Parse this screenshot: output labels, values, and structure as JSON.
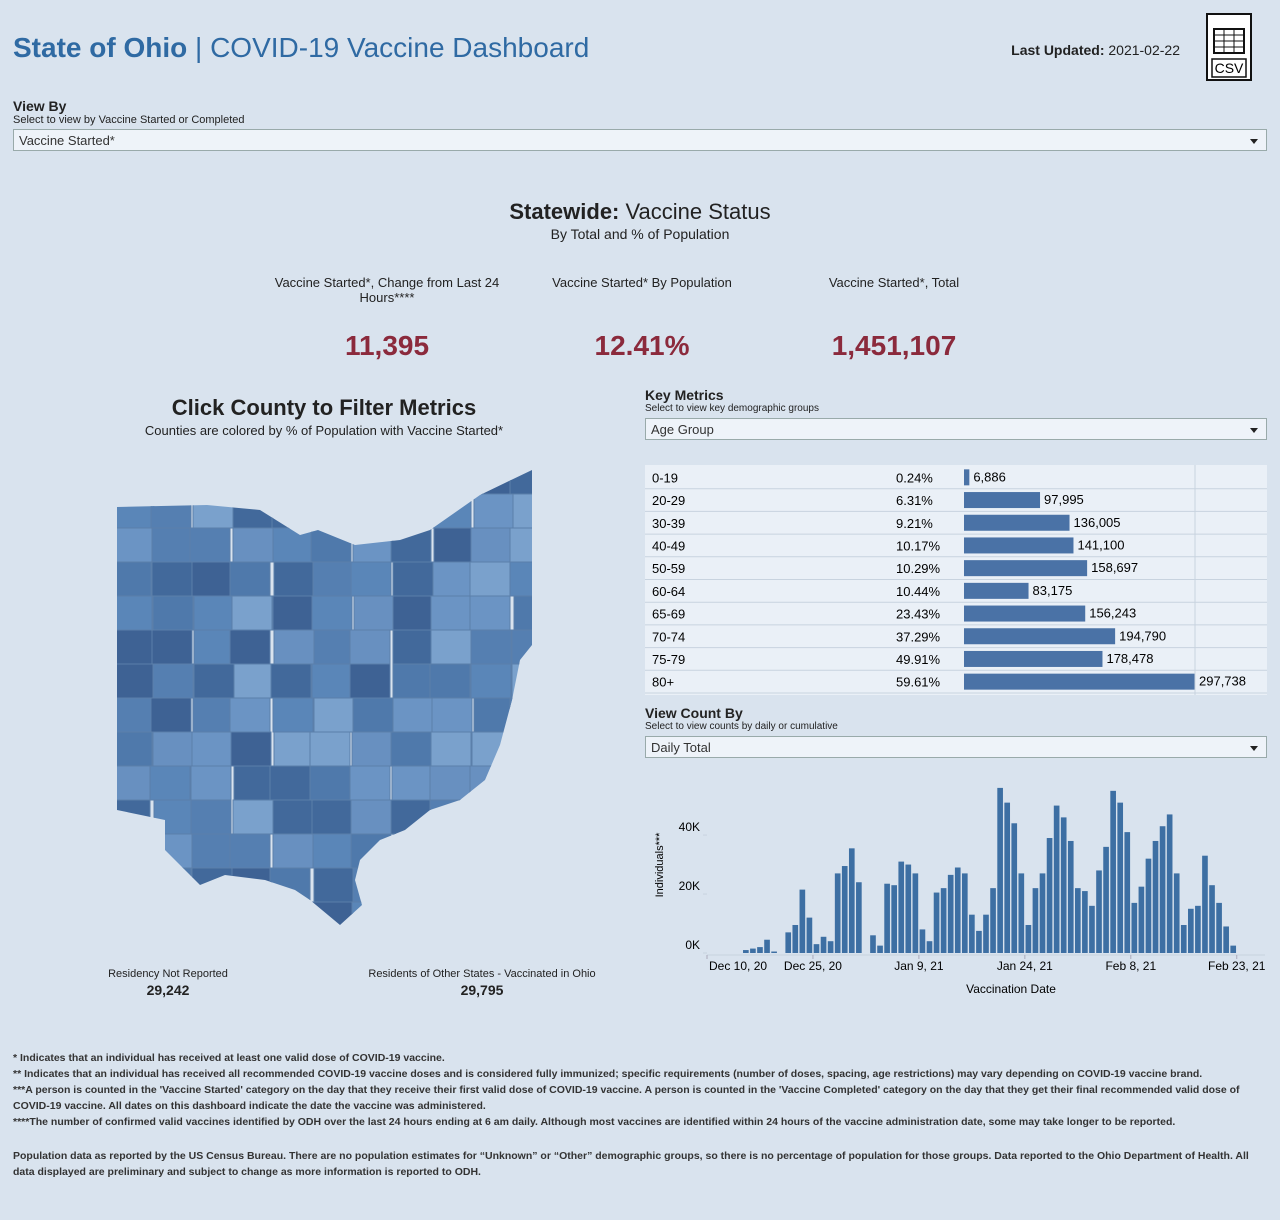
{
  "header": {
    "title_bold": "State of Ohio",
    "title_rest": "| COVID-19 Vaccine Dashboard",
    "updated_label": "Last Updated:",
    "updated_value": "2021-02-22",
    "csv_icon": "CSV"
  },
  "view_by": {
    "label": "View By",
    "hint": "Select to view by Vaccine Started or Completed",
    "selected": "Vaccine Started*"
  },
  "statewide": {
    "title_bold": "Statewide:",
    "title_rest": "Vaccine Status",
    "subtitle": "By Total and % of Population",
    "kpis": [
      {
        "label": "Vaccine Started*, Change from Last 24 Hours****",
        "value": "11,395"
      },
      {
        "label": "Vaccine Started* By Population",
        "value": "12.41%"
      },
      {
        "label": "Vaccine Started*, Total",
        "value": "1,451,107"
      }
    ]
  },
  "map": {
    "title": "Click County to Filter Metrics",
    "subtitle": "Counties are colored by % of Population with Vaccine Started*",
    "stats": [
      {
        "label": "Residency Not Reported",
        "value": "29,242"
      },
      {
        "label": "Residents of Other States - Vaccinated in Ohio",
        "value": "29,795"
      }
    ]
  },
  "key_metrics": {
    "label": "Key Metrics",
    "hint": "Select to view key demographic groups",
    "selected": "Age Group",
    "table": {
      "type": "bar",
      "color": "#4a72a6",
      "categories": [
        "0-19",
        "20-29",
        "30-39",
        "40-49",
        "50-59",
        "60-64",
        "65-69",
        "70-74",
        "75-79",
        "80+"
      ],
      "percent": [
        "0.24%",
        "6.31%",
        "9.21%",
        "10.17%",
        "10.29%",
        "10.44%",
        "23.43%",
        "37.29%",
        "49.91%",
        "59.61%"
      ],
      "values": [
        6886,
        97995,
        136005,
        141100,
        158697,
        83175,
        156243,
        194790,
        178478,
        297738
      ],
      "value_labels": [
        "6,886",
        "97,995",
        "136,005",
        "141,100",
        "158,697",
        "83,175",
        "156,243",
        "194,790",
        "178,478",
        "297,738"
      ]
    }
  },
  "view_count": {
    "label": "View Count By",
    "hint": "Select to view counts by daily or cumulative",
    "selected": "Daily Total"
  },
  "chart_data": {
    "type": "bar",
    "color": "#3d6fa3",
    "xlabel": "Vaccination Date",
    "ylabel": "Individuals***",
    "x": [
      "2020-12-15",
      "2020-12-16",
      "2020-12-17",
      "2020-12-18",
      "2020-12-19",
      "2020-12-20",
      "2020-12-21",
      "2020-12-22",
      "2020-12-23",
      "2020-12-24",
      "2020-12-25",
      "2020-12-26",
      "2020-12-27",
      "2020-12-28",
      "2020-12-29",
      "2020-12-30",
      "2020-12-31",
      "2021-01-01",
      "2021-01-02",
      "2021-01-03",
      "2021-01-04",
      "2021-01-05",
      "2021-01-06",
      "2021-01-07",
      "2021-01-08",
      "2021-01-09",
      "2021-01-10",
      "2021-01-11",
      "2021-01-12",
      "2021-01-13",
      "2021-01-14",
      "2021-01-15",
      "2021-01-16",
      "2021-01-17",
      "2021-01-18",
      "2021-01-19",
      "2021-01-20",
      "2021-01-21",
      "2021-01-22",
      "2021-01-23",
      "2021-01-24",
      "2021-01-25",
      "2021-01-26",
      "2021-01-27",
      "2021-01-28",
      "2021-01-29",
      "2021-01-30",
      "2021-01-31",
      "2021-02-01",
      "2021-02-02",
      "2021-02-03",
      "2021-02-04",
      "2021-02-05",
      "2021-02-06",
      "2021-02-07",
      "2021-02-08",
      "2021-02-09",
      "2021-02-10",
      "2021-02-11",
      "2021-02-12",
      "2021-02-13",
      "2021-02-14",
      "2021-02-15",
      "2021-02-16",
      "2021-02-17",
      "2021-02-18",
      "2021-02-19",
      "2021-02-20",
      "2021-02-21",
      "2021-02-22"
    ],
    "values": [
      1000,
      1500,
      2000,
      4500,
      500,
      0,
      7000,
      9500,
      21500,
      12000,
      3000,
      5500,
      4000,
      27000,
      29500,
      35500,
      24000,
      0,
      6000,
      2500,
      23500,
      23000,
      31000,
      30000,
      27000,
      8000,
      4000,
      20500,
      22000,
      26500,
      29000,
      27000,
      13000,
      7500,
      13000,
      22000,
      56000,
      51000,
      44000,
      27000,
      9500,
      22000,
      27000,
      39000,
      50000,
      46000,
      38000,
      22000,
      21000,
      16000,
      28000,
      36000,
      55000,
      51000,
      41000,
      17000,
      22500,
      32000,
      38000,
      43000,
      47000,
      27000,
      9500,
      15000,
      16000,
      33000,
      23000,
      17000,
      9000,
      2500
    ],
    "xlim": [
      "2020-12-10",
      "2021-02-27"
    ],
    "xticks": [
      {
        "value": "2020-12-10",
        "label": "Dec 10, 20"
      },
      {
        "value": "2020-12-25",
        "label": "Dec 25, 20"
      },
      {
        "value": "2021-01-09",
        "label": "Jan 9, 21"
      },
      {
        "value": "2021-01-24",
        "label": "Jan 24, 21"
      },
      {
        "value": "2021-02-08",
        "label": "Feb 8, 21"
      },
      {
        "value": "2021-02-23",
        "label": "Feb 23, 21"
      }
    ],
    "ylim": [
      0,
      58000
    ],
    "yticks": [
      {
        "value": 0,
        "label": "0K"
      },
      {
        "value": 20000,
        "label": "20K"
      },
      {
        "value": 40000,
        "label": "40K"
      }
    ]
  },
  "footnotes": [
    "* Indicates that an individual has received at least one valid dose of COVID-19 vaccine.",
    "** Indicates that an individual has received all recommended COVID-19 vaccine doses and is considered fully immunized; specific requirements (number of doses, spacing, age restrictions) may vary depending on COVID-19 vaccine brand.",
    "***A person is counted in the 'Vaccine Started' category on the day that they receive their first valid dose of COVID-19 vaccine.  A person is counted in the 'Vaccine Completed' category on the day that they get their final recommended valid dose of COVID-19 vaccine. All dates on this dashboard indicate the date the vaccine was administered.",
    "****The number of confirmed valid vaccines identified by ODH over the last 24 hours ending at 6 am daily. Although most vaccines are identified within 24 hours of the vaccine administration date, some may take longer to be reported."
  ],
  "population_note": "Population data as reported by the US Census Bureau. There are no population estimates for “Unknown” or “Other” demographic groups, so there is no percentage of population for those groups.  Data reported to the Ohio Department of Health.  All data displayed are preliminary and subject to change as more information is reported to ODH."
}
